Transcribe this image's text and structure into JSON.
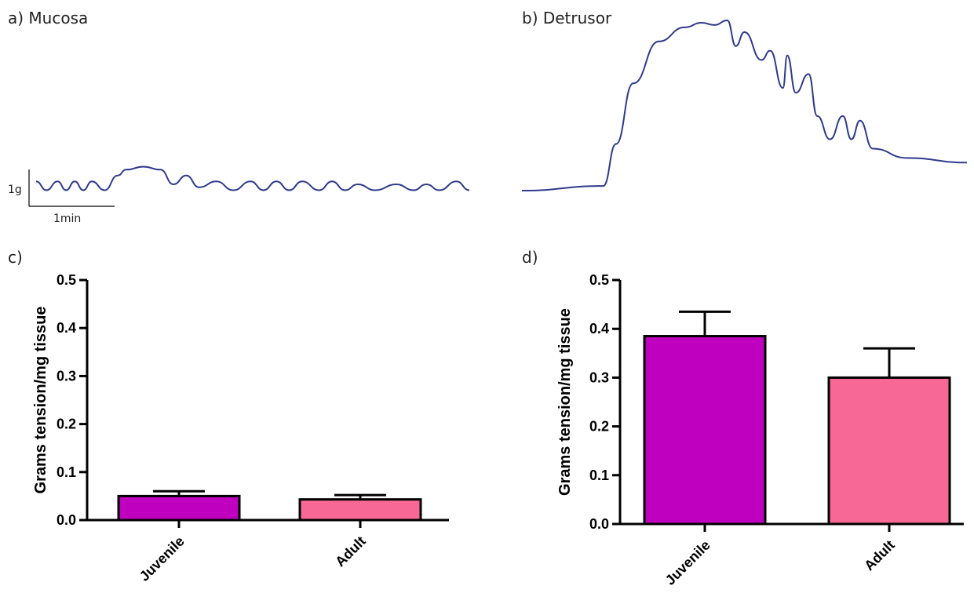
{
  "panels": {
    "a": {
      "label": "a) Mucosa"
    },
    "b": {
      "label": "b) Detrusor"
    },
    "c": {
      "label": "c)"
    },
    "d": {
      "label": "d)"
    }
  },
  "scale_bar": {
    "vertical": "1g",
    "horizontal": "1min"
  },
  "colors": {
    "trace": "#2e3a8c",
    "juvenile": "#bf00bf",
    "adult": "#f86896",
    "axis": "#000000"
  },
  "chart_data": [
    {
      "type": "line",
      "title": "a) Mucosa",
      "xlabel": "",
      "ylabel": "",
      "units": {
        "x": "min",
        "y": "g"
      },
      "series": [
        {
          "x": [
            0,
            0.12,
            0.25,
            0.35,
            0.45,
            0.55,
            0.65,
            0.8,
            0.95,
            1.05,
            1.25,
            1.45,
            1.6,
            1.75,
            1.9,
            2.1,
            2.3,
            2.5,
            2.65,
            2.8,
            2.95,
            3.1,
            3.3,
            3.45,
            3.6,
            3.75,
            3.95,
            4.2,
            4.4,
            4.55,
            4.7,
            4.9,
            5.05
          ],
          "y": [
            0.1,
            -0.05,
            0.1,
            -0.05,
            0.1,
            -0.05,
            0.1,
            -0.05,
            0.2,
            0.3,
            0.35,
            0.3,
            0.05,
            0.2,
            0.0,
            0.1,
            -0.05,
            0.1,
            -0.05,
            0.1,
            -0.05,
            0.1,
            -0.05,
            0.1,
            -0.05,
            0.05,
            -0.05,
            0.05,
            -0.05,
            0.05,
            -0.05,
            0.1,
            -0.05
          ]
        }
      ]
    },
    {
      "type": "line",
      "title": "b) Detrusor",
      "xlabel": "",
      "ylabel": "",
      "units": {
        "x": "min",
        "y": "g"
      },
      "series": [
        {
          "x": [
            0,
            0.95,
            1.1,
            1.3,
            1.6,
            1.9,
            2.1,
            2.25,
            2.4,
            2.5,
            2.6,
            2.8,
            2.9,
            3.05,
            3.1,
            3.2,
            3.35,
            3.45,
            3.6,
            3.75,
            3.85,
            3.95,
            4.1,
            4.5,
            5.2
          ],
          "y": [
            0,
            0.1,
            1.0,
            2.3,
            3.2,
            3.5,
            3.6,
            3.55,
            3.65,
            3.1,
            3.4,
            2.8,
            3.0,
            2.2,
            2.9,
            2.1,
            2.5,
            1.6,
            1.1,
            1.6,
            1.1,
            1.5,
            0.9,
            0.7,
            0.6
          ]
        }
      ]
    },
    {
      "type": "bar",
      "title": "c)",
      "xlabel": "",
      "ylabel": "Grams tension/mg tissue",
      "categories": [
        "Juvenile",
        "Adult"
      ],
      "values": [
        0.05,
        0.043
      ],
      "error": [
        0.01,
        0.009
      ],
      "ylim": [
        0,
        0.5
      ],
      "yticks": [
        "0.0",
        "0.1",
        "0.2",
        "0.3",
        "0.4",
        "0.5"
      ],
      "grid": false
    },
    {
      "type": "bar",
      "title": "d)",
      "xlabel": "",
      "ylabel": "Grams tension/mg tissue",
      "categories": [
        "Juvenile",
        "Adult"
      ],
      "values": [
        0.385,
        0.3
      ],
      "error": [
        0.05,
        0.06
      ],
      "ylim": [
        0,
        0.5
      ],
      "yticks": [
        "0.0",
        "0.1",
        "0.2",
        "0.3",
        "0.4",
        "0.5"
      ],
      "grid": false
    }
  ]
}
